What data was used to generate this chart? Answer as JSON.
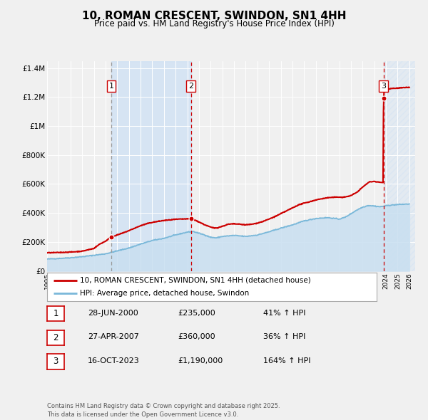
{
  "title": "10, ROMAN CRESCENT, SWINDON, SN1 4HH",
  "subtitle": "Price paid vs. HM Land Registry's House Price Index (HPI)",
  "title_fontsize": 11,
  "subtitle_fontsize": 8.5,
  "xlim": [
    1995.0,
    2026.5
  ],
  "ylim": [
    0,
    1450000
  ],
  "yticks": [
    0,
    200000,
    400000,
    600000,
    800000,
    1000000,
    1200000,
    1400000
  ],
  "ytick_labels": [
    "£0",
    "£200K",
    "£400K",
    "£600K",
    "£800K",
    "£1M",
    "£1.2M",
    "£1.4M"
  ],
  "xtick_years": [
    1995,
    1996,
    1997,
    1998,
    1999,
    2000,
    2001,
    2002,
    2003,
    2004,
    2005,
    2006,
    2007,
    2008,
    2009,
    2010,
    2011,
    2012,
    2013,
    2014,
    2015,
    2016,
    2017,
    2018,
    2019,
    2020,
    2021,
    2022,
    2023,
    2024,
    2025,
    2026
  ],
  "sale_color": "#cc0000",
  "hpi_color": "#7ab8d9",
  "hpi_fill_color": "#c8dff0",
  "background_color": "#f0f0f0",
  "grid_color": "#ffffff",
  "transactions": [
    {
      "id": 1,
      "date": 2000.49,
      "price": 235000,
      "pct": "41%",
      "date_str": "28-JUN-2000",
      "price_str": "£235,000",
      "vline_color": "#999999"
    },
    {
      "id": 2,
      "date": 2007.32,
      "price": 360000,
      "pct": "36%",
      "date_str": "27-APR-2007",
      "price_str": "£360,000",
      "vline_color": "#cc0000"
    },
    {
      "id": 3,
      "date": 2023.79,
      "price": 1190000,
      "pct": "164%",
      "date_str": "16-OCT-2023",
      "price_str": "£1,190,000",
      "vline_color": "#cc0000"
    }
  ],
  "legend_label_sale": "10, ROMAN CRESCENT, SWINDON, SN1 4HH (detached house)",
  "legend_label_hpi": "HPI: Average price, detached house, Swindon",
  "footnote": "Contains HM Land Registry data © Crown copyright and database right 2025.\nThis data is licensed under the Open Government Licence v3.0."
}
